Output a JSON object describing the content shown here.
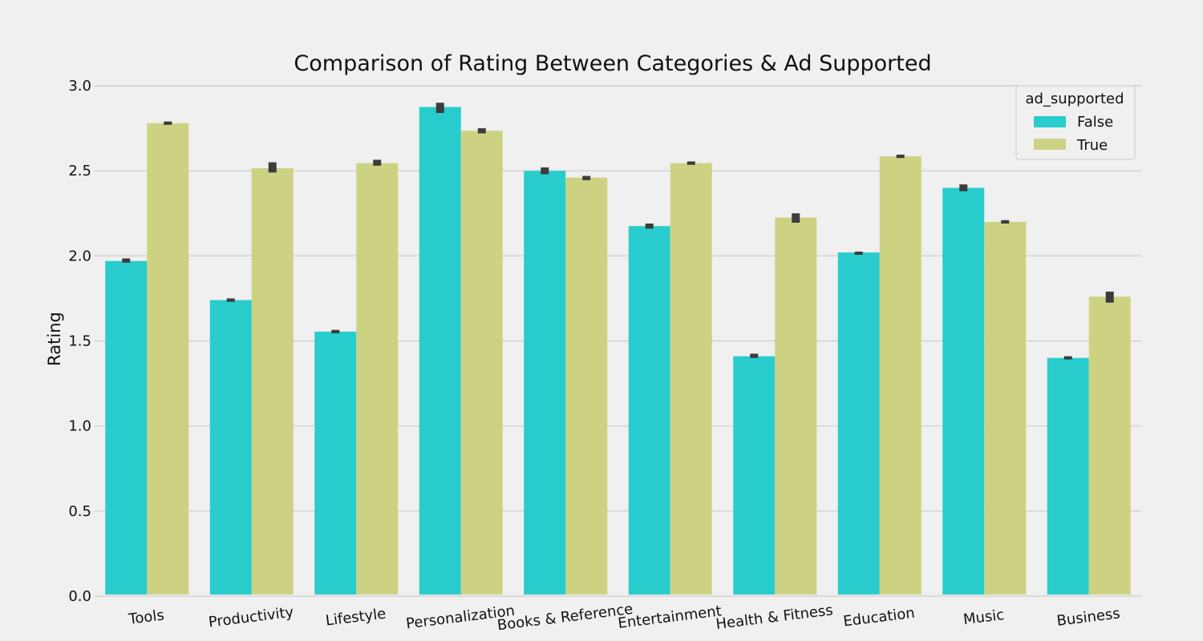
{
  "chart_data": {
    "type": "bar",
    "title": "Comparison of Rating Between Categories & Ad Supported",
    "xlabel": "",
    "ylabel": "Rating",
    "ylim": [
      0,
      3.0
    ],
    "yticks": [
      "0.0",
      "0.5",
      "1.0",
      "1.5",
      "2.0",
      "2.5",
      "3.0"
    ],
    "grid": "horizontal",
    "legend": {
      "title": "ad_supported",
      "position": "top-right"
    },
    "categories": [
      "Tools",
      "Productivity",
      "Lifestyle",
      "Personalization",
      "Books & Reference",
      "Entertainment",
      "Health & Fitness",
      "Education",
      "Music",
      "Business"
    ],
    "series": [
      {
        "name": "False",
        "color": "#29cccc",
        "values": [
          1.97,
          1.74,
          1.555,
          2.875,
          2.5,
          2.175,
          1.41,
          2.02,
          2.4,
          1.4
        ],
        "err_low": [
          1.96,
          1.73,
          1.545,
          2.84,
          2.48,
          2.16,
          1.4,
          2.015,
          2.38,
          1.395
        ],
        "err_high": [
          1.985,
          1.75,
          1.565,
          2.9,
          2.52,
          2.19,
          1.425,
          2.025,
          2.42,
          1.41
        ]
      },
      {
        "name": "True",
        "color": "#cdd282",
        "values": [
          2.78,
          2.515,
          2.545,
          2.735,
          2.46,
          2.545,
          2.225,
          2.585,
          2.2,
          1.76
        ],
        "err_low": [
          2.77,
          2.49,
          2.53,
          2.72,
          2.445,
          2.535,
          2.195,
          2.575,
          2.19,
          1.725
        ],
        "err_high": [
          2.79,
          2.55,
          2.565,
          2.75,
          2.47,
          2.555,
          2.25,
          2.595,
          2.21,
          1.79
        ]
      }
    ]
  }
}
